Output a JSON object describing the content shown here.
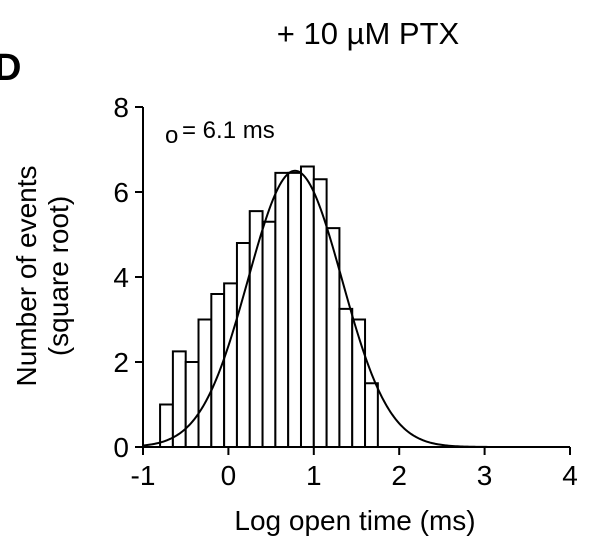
{
  "panel_letter": "D",
  "chart_data": {
    "type": "bar",
    "title": "+ 10 µM PTX",
    "xlabel": "Log open time (ms)",
    "ylabel_line1": "Number of events",
    "ylabel_line2": "(square root)",
    "annotation": {
      "symbol": "o",
      "text": "= 6.1 ms"
    },
    "xlim": [
      -1,
      4
    ],
    "ylim": [
      0,
      8
    ],
    "x_ticks": [
      -1,
      0,
      1,
      2,
      3,
      4
    ],
    "y_ticks": [
      0,
      2,
      4,
      6,
      8
    ],
    "x_tick_labels": [
      "-1",
      "0",
      "1",
      "2",
      "3",
      "4"
    ],
    "y_tick_labels": [
      "0",
      "2",
      "4",
      "6",
      "8"
    ],
    "bin_width": 0.15,
    "bin_starts": [
      -0.8,
      -0.65,
      -0.5,
      -0.35,
      -0.2,
      -0.05,
      0.1,
      0.25,
      0.4,
      0.55,
      0.7,
      0.85,
      1.0,
      1.15,
      1.3,
      1.45,
      1.6
    ],
    "values": [
      1.0,
      2.25,
      2.0,
      3.0,
      3.6,
      3.85,
      4.8,
      5.55,
      5.3,
      6.45,
      6.45,
      6.6,
      6.3,
      5.15,
      3.25,
      3.0,
      1.5
    ],
    "fit_curve": {
      "type": "gaussian",
      "amplitude": 6.5,
      "center": 0.78,
      "sigma": 0.55,
      "x_range": [
        -1,
        4
      ]
    },
    "grid": false,
    "legend": "none",
    "colors": {
      "bar_fill": "#ffffff",
      "bar_stroke": "#000000",
      "curve": "#000000",
      "axis": "#000000"
    }
  }
}
